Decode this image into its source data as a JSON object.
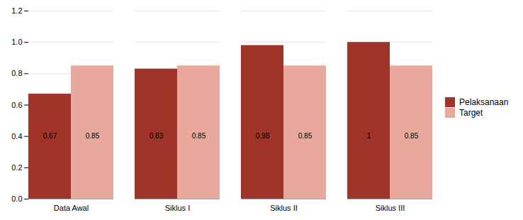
{
  "chart_data": {
    "type": "bar",
    "categories": [
      "Data Awal",
      "Siklus I",
      "Siklus II",
      "Siklus III"
    ],
    "series": [
      {
        "name": "Pelaksanaan",
        "color": "#A0342A",
        "values": [
          0.67,
          0.83,
          0.98,
          1.0
        ]
      },
      {
        "name": "Target",
        "color": "#E8A89C",
        "values": [
          0.85,
          0.85,
          0.85,
          0.85
        ]
      }
    ],
    "ylim": [
      0,
      1.2
    ],
    "yticks": [
      {
        "value": 0,
        "label": "0.0"
      },
      0.2,
      0.4,
      0.6,
      0.8,
      {
        "value": 1.0,
        "label": "1.0"
      },
      1.2
    ],
    "grid": true,
    "legend": "right",
    "data_labels": true
  }
}
